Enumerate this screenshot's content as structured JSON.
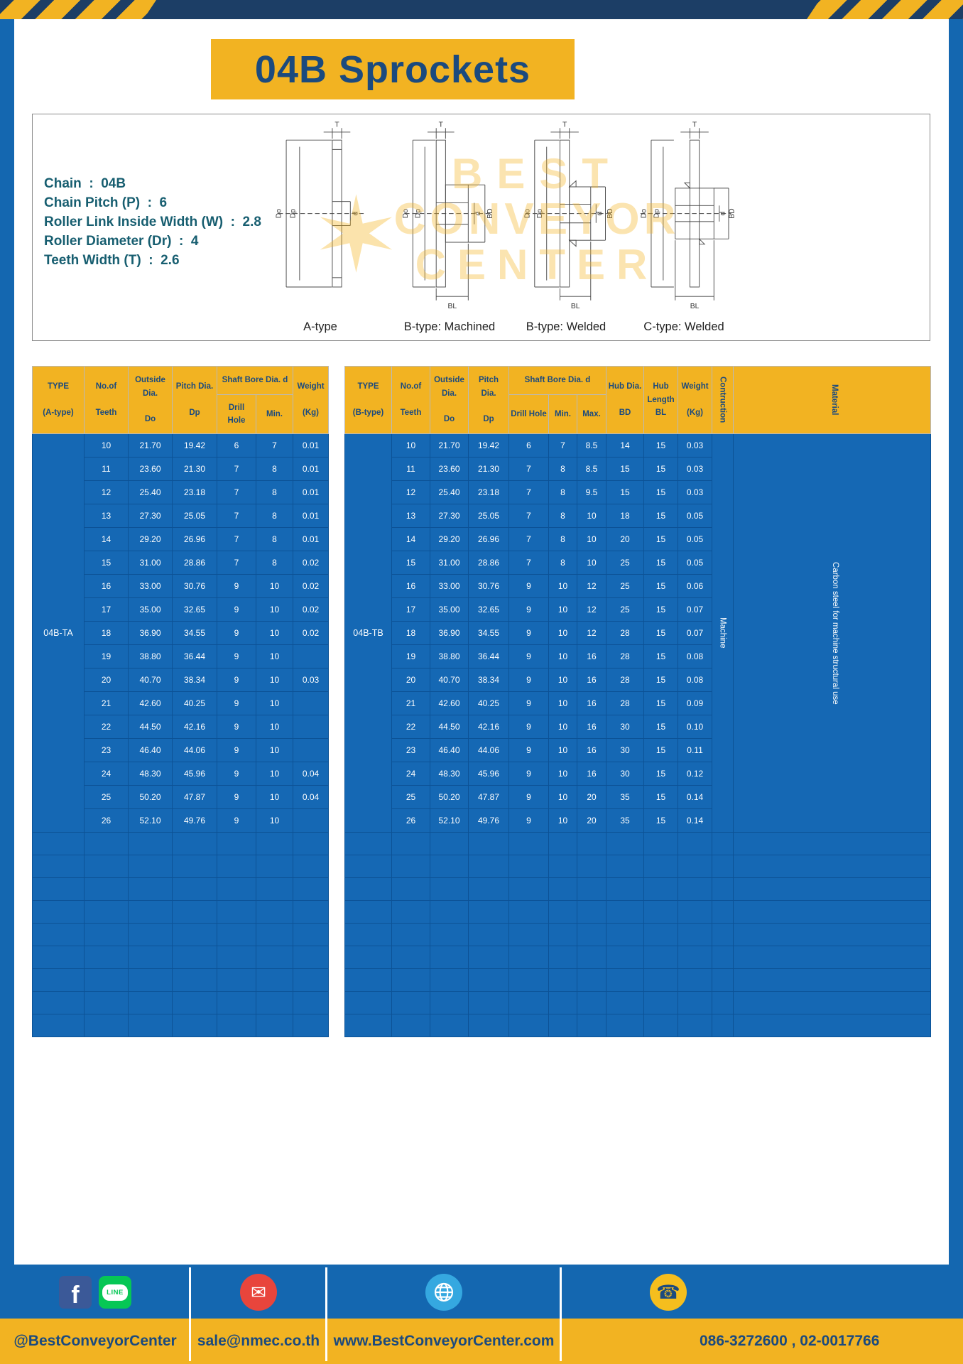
{
  "title": "04B Sprockets",
  "colors": {
    "yellow": "#F2B322",
    "navy": "#1B4A7E",
    "frame_blue": "#1467B0",
    "cell_blue": "#1568B4",
    "grid_blue": "#0C5296",
    "topbar_navy": "#1C3E66",
    "spec_teal": "#175E70",
    "fb_blue": "#3B5998",
    "line_green": "#06C755",
    "mail_red": "#E8453C",
    "globe_blue": "#35A8E0",
    "phone_yellow": "#F5BE1E"
  },
  "specs": [
    "Chain  :  04B",
    "Chain Pitch (P)  :  6",
    "Roller Link Inside Width (W)  :  2.8",
    "Roller Diameter (Dr)  :  4",
    "Teeth Width (T)  :  2.6"
  ],
  "diagram": {
    "captions": [
      "A-type",
      "B-type: Machined",
      "B-type: Welded",
      "C-type: Welded"
    ],
    "dims": {
      "T": "T",
      "Do": "Do",
      "Dp": "Dp",
      "d": "d",
      "BD": "BD",
      "BL": "BL"
    },
    "watermark": {
      "line1": "BEST",
      "line2": "CONVEYOR",
      "line3": "CENTER"
    }
  },
  "table_a": {
    "headers": {
      "type": "TYPE\n\n(A-type)",
      "teeth": "No.of\n\nTeeth",
      "outside": "Outside\nDia.\n\nDo",
      "pitch": "Pitch Dia.\n\nDp",
      "shaft": "Shaft Bore Dia. d",
      "drill": "Drill Hole",
      "min": "Min.",
      "weight": "Weight\n\n(Kg)"
    },
    "type_label": "04B-TA",
    "rows": [
      [
        "10",
        "21.70",
        "19.42",
        "6",
        "7",
        "0.01"
      ],
      [
        "11",
        "23.60",
        "21.30",
        "7",
        "8",
        "0.01"
      ],
      [
        "12",
        "25.40",
        "23.18",
        "7",
        "8",
        "0.01"
      ],
      [
        "13",
        "27.30",
        "25.05",
        "7",
        "8",
        "0.01"
      ],
      [
        "14",
        "29.20",
        "26.96",
        "7",
        "8",
        "0.01"
      ],
      [
        "15",
        "31.00",
        "28.86",
        "7",
        "8",
        "0.02"
      ],
      [
        "16",
        "33.00",
        "30.76",
        "9",
        "10",
        "0.02"
      ],
      [
        "17",
        "35.00",
        "32.65",
        "9",
        "10",
        "0.02"
      ],
      [
        "18",
        "36.90",
        "34.55",
        "9",
        "10",
        "0.02"
      ],
      [
        "19",
        "38.80",
        "36.44",
        "9",
        "10",
        ""
      ],
      [
        "20",
        "40.70",
        "38.34",
        "9",
        "10",
        "0.03"
      ],
      [
        "21",
        "42.60",
        "40.25",
        "9",
        "10",
        ""
      ],
      [
        "22",
        "44.50",
        "42.16",
        "9",
        "10",
        ""
      ],
      [
        "23",
        "46.40",
        "44.06",
        "9",
        "10",
        ""
      ],
      [
        "24",
        "48.30",
        "45.96",
        "9",
        "10",
        "0.04"
      ],
      [
        "25",
        "50.20",
        "47.87",
        "9",
        "10",
        "0.04"
      ],
      [
        "26",
        "52.10",
        "49.76",
        "9",
        "10",
        ""
      ]
    ],
    "empty_rows": 9,
    "empty_cols": 7
  },
  "table_b": {
    "headers": {
      "type": "TYPE\n\n(B-type)",
      "teeth": "No.of\n\nTeeth",
      "outside": "Outside\nDia.\n\nDo",
      "pitch": "Pitch Dia.\n\nDp",
      "shaft": "Shaft Bore Dia. d",
      "drill": "Drill Hole",
      "min": "Min.",
      "max": "Max.",
      "hub_dia": "Hub Dia.\n\nBD",
      "hub_len": "Hub\nLength\nBL",
      "weight": "Weight\n\n(Kg)",
      "construction": "Contruction",
      "material": "Material"
    },
    "type_label": "04B-TB",
    "construction_value": "Machine",
    "material_value": "Carbon steel for machine structural use",
    "rows": [
      [
        "10",
        "21.70",
        "19.42",
        "6",
        "7",
        "8.5",
        "14",
        "15",
        "0.03"
      ],
      [
        "11",
        "23.60",
        "21.30",
        "7",
        "8",
        "8.5",
        "15",
        "15",
        "0.03"
      ],
      [
        "12",
        "25.40",
        "23.18",
        "7",
        "8",
        "9.5",
        "15",
        "15",
        "0.03"
      ],
      [
        "13",
        "27.30",
        "25.05",
        "7",
        "8",
        "10",
        "18",
        "15",
        "0.05"
      ],
      [
        "14",
        "29.20",
        "26.96",
        "7",
        "8",
        "10",
        "20",
        "15",
        "0.05"
      ],
      [
        "15",
        "31.00",
        "28.86",
        "7",
        "8",
        "10",
        "25",
        "15",
        "0.05"
      ],
      [
        "16",
        "33.00",
        "30.76",
        "9",
        "10",
        "12",
        "25",
        "15",
        "0.06"
      ],
      [
        "17",
        "35.00",
        "32.65",
        "9",
        "10",
        "12",
        "25",
        "15",
        "0.07"
      ],
      [
        "18",
        "36.90",
        "34.55",
        "9",
        "10",
        "12",
        "28",
        "15",
        "0.07"
      ],
      [
        "19",
        "38.80",
        "36.44",
        "9",
        "10",
        "16",
        "28",
        "15",
        "0.08"
      ],
      [
        "20",
        "40.70",
        "38.34",
        "9",
        "10",
        "16",
        "28",
        "15",
        "0.08"
      ],
      [
        "21",
        "42.60",
        "40.25",
        "9",
        "10",
        "16",
        "28",
        "15",
        "0.09"
      ],
      [
        "22",
        "44.50",
        "42.16",
        "9",
        "10",
        "16",
        "30",
        "15",
        "0.10"
      ],
      [
        "23",
        "46.40",
        "44.06",
        "9",
        "10",
        "16",
        "30",
        "15",
        "0.11"
      ],
      [
        "24",
        "48.30",
        "45.96",
        "9",
        "10",
        "16",
        "30",
        "15",
        "0.12"
      ],
      [
        "25",
        "50.20",
        "47.87",
        "9",
        "10",
        "20",
        "35",
        "15",
        "0.14"
      ],
      [
        "26",
        "52.10",
        "49.76",
        "9",
        "10",
        "20",
        "35",
        "15",
        "0.14"
      ]
    ],
    "empty_rows": 9,
    "empty_cols": 12
  },
  "footer": {
    "handle": "@BestConveyorCenter",
    "email": "sale@nmec.co.th",
    "website": "www.BestConveyorCenter.com",
    "phones": "086-3272600 , 02-0017766",
    "fb_letter": "f",
    "line_label": "LINE",
    "mail_glyph": "✉",
    "phone_glyph": "☎"
  }
}
